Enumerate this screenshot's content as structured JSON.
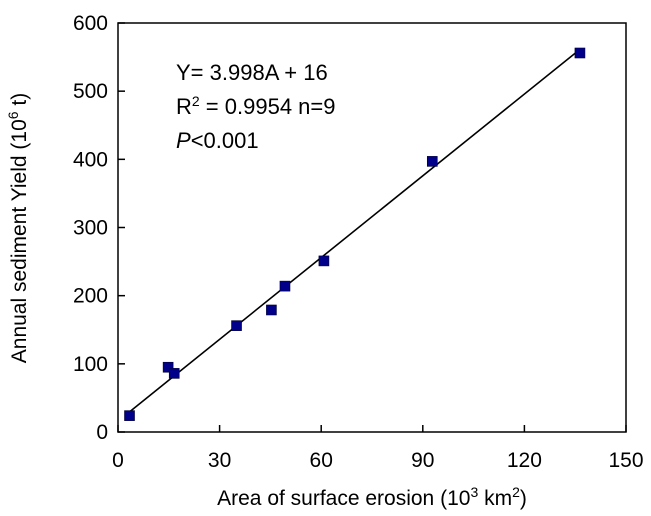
{
  "chart_data": {
    "type": "scatter",
    "xlabel": "Area of surface erosion (10",
    "xlabel_sup": "3",
    "xlabel_tail": " km",
    "xlabel_sup2": "2",
    "xlabel_end": ")",
    "ylabel": "Annual sediment Yield (10",
    "ylabel_sup": "6",
    "ylabel_end": " t)",
    "xlim": [
      0,
      150
    ],
    "ylim": [
      0,
      600
    ],
    "xticks": [
      0,
      30,
      60,
      90,
      120,
      150
    ],
    "yticks": [
      0,
      100,
      200,
      300,
      400,
      500,
      600
    ],
    "grid": false,
    "marker_color": "#00008b",
    "line_color": "#000000",
    "points": [
      {
        "x": 3.4,
        "y": 24
      },
      {
        "x": 14.8,
        "y": 95
      },
      {
        "x": 16.6,
        "y": 86
      },
      {
        "x": 35.0,
        "y": 156
      },
      {
        "x": 45.3,
        "y": 179
      },
      {
        "x": 49.3,
        "y": 214
      },
      {
        "x": 60.8,
        "y": 251
      },
      {
        "x": 92.8,
        "y": 397
      },
      {
        "x": 136.4,
        "y": 556
      }
    ],
    "trendline": {
      "slope": 3.998,
      "intercept": 16,
      "x_start": 3.4,
      "x_end": 136.4
    },
    "annotations": {
      "equation": "Y= 3.998A + 16",
      "r2_prefix": "R",
      "r2_sup": "2",
      "r2_rest": " = 0.9954  n=9",
      "p_italic": "P",
      "p_rest": "<0.001"
    }
  }
}
